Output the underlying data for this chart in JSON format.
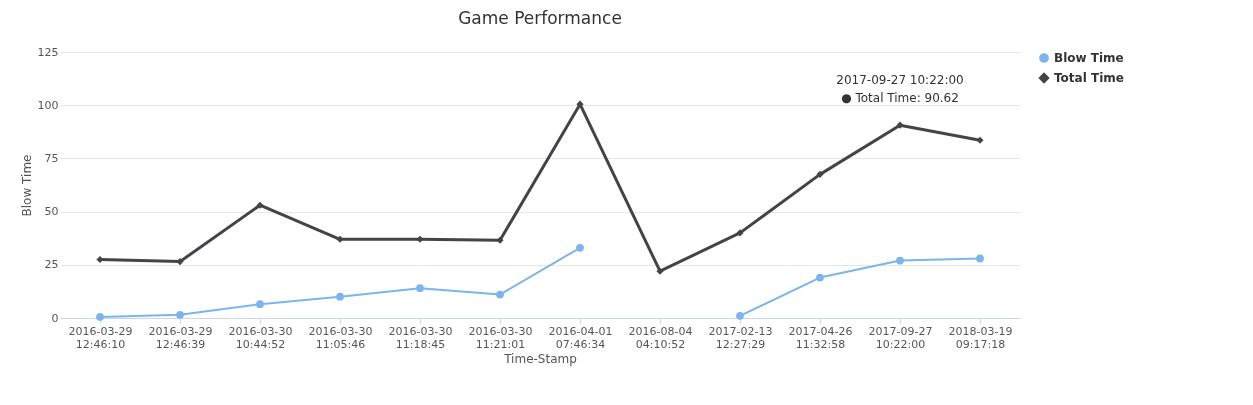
{
  "chart_data": {
    "type": "line",
    "title": "Game Performance",
    "xlabel": "Time-Stamp",
    "ylabel": "Blow Time",
    "categories": [
      "2016-03-29 12:46:10",
      "2016-03-29 12:46:39",
      "2016-03-30 10:44:52",
      "2016-03-30 11:05:46",
      "2016-03-30 11:18:45",
      "2016-03-30 11:21:01",
      "2016-04-01 07:46:34",
      "2016-08-04 04:10:52",
      "2017-02-13 12:27:29",
      "2017-04-26 11:32:58",
      "2017-09-27 10:22:00",
      "2018-03-19 09:17:18"
    ],
    "series": [
      {
        "name": "Blow Time",
        "color": "#7cb5ec",
        "marker": "circle",
        "values": [
          0.5,
          1.5,
          6.5,
          10,
          14,
          11,
          33,
          null,
          1,
          19,
          27,
          28
        ]
      },
      {
        "name": "Total Time",
        "color": "#434348",
        "marker": "diamond",
        "values": [
          27.5,
          26.5,
          53,
          37,
          37,
          36.5,
          100.5,
          22,
          40,
          67.5,
          90.62,
          83.5
        ]
      }
    ],
    "annotations": [
      {
        "text": "2017-09-27 10:22:00\n● Total Time: 90.62",
        "x": "2017-09-27 10:22:00",
        "y": 90.62
      }
    ],
    "ylim": [
      0,
      125
    ],
    "yticks": [
      0,
      25,
      50,
      75,
      100,
      125
    ],
    "grid": "y",
    "legend": "right"
  }
}
